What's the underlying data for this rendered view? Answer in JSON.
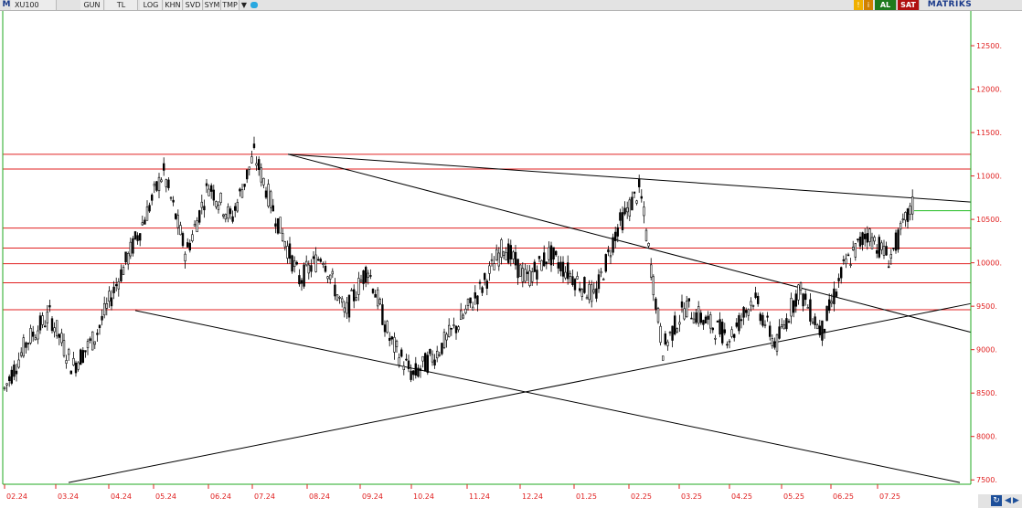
{
  "toolbar": {
    "logo": "M",
    "symbol": "XU100",
    "buttons": [
      "GUN",
      "TL",
      "LOG",
      "KHN",
      "SVD",
      "SYM",
      "TMP"
    ],
    "buy_label": "AL",
    "sell_label": "SAT",
    "brand": "MATRIKS"
  },
  "colors": {
    "background": "#ffffff",
    "candle": "#000000",
    "trendline": "#000000",
    "resistance_line": "#e02020",
    "axis_text": "#e02020",
    "target_line": "#22bb22",
    "plot_border": "#22aa22"
  },
  "chart_data": {
    "type": "candlestick",
    "title": "",
    "xlabel": "",
    "ylabel": "",
    "ylim": [
      7450,
      12900
    ],
    "yticks": [
      7500,
      8000,
      8500,
      9000,
      9500,
      10000,
      10500,
      11000,
      11500,
      12000,
      12500
    ],
    "xticks": [
      "02.24",
      "03.24",
      "04.24",
      "05.24",
      "06.24",
      "07.24",
      "08.24",
      "09.24",
      "10.24",
      "11.24",
      "12.24",
      "01.25",
      "02.25",
      "03.25",
      "04.25",
      "05.25",
      "06.25",
      "07.25"
    ],
    "horizontal_levels": [
      11250,
      11080,
      10400,
      10170,
      9990,
      9770,
      9460
    ],
    "trendlines": [
      {
        "from": [
          "07.24",
          11250
        ],
        "to": [
          "08.25",
          10700
        ]
      },
      {
        "from": [
          "07.24",
          11250
        ],
        "to": [
          "08.25",
          9200
        ]
      },
      {
        "from": [
          "04.24",
          9450
        ],
        "to": [
          "08.25",
          7470
        ]
      },
      {
        "from": [
          "03.24",
          7470
        ],
        "to": [
          "08.25",
          9530
        ]
      }
    ],
    "target_level": 10600,
    "price_path": [
      [
        "02.24",
        8550
      ],
      [
        "02.24",
        9100
      ],
      [
        "03.24",
        9400
      ],
      [
        "03.24",
        8800
      ],
      [
        "04.24",
        9150
      ],
      [
        "04.24",
        9800
      ],
      [
        "05.24",
        10400
      ],
      [
        "05.24",
        11050
      ],
      [
        "06.24",
        10100
      ],
      [
        "06.24",
        10900
      ],
      [
        "07.24",
        10500
      ],
      [
        "07.24",
        11250
      ],
      [
        "08.24",
        10500
      ],
      [
        "08.24",
        9800
      ],
      [
        "09.24",
        10100
      ],
      [
        "09.24",
        9400
      ],
      [
        "10.24",
        9950
      ],
      [
        "10.24",
        9100
      ],
      [
        "11.24",
        8700
      ],
      [
        "11.24",
        8950
      ],
      [
        "11.24",
        9300
      ],
      [
        "12.24",
        9700
      ],
      [
        "12.24",
        10200
      ],
      [
        "01.25",
        9800
      ],
      [
        "01.25",
        10100
      ],
      [
        "02.25",
        9850
      ],
      [
        "02.25",
        9600
      ],
      [
        "03.25",
        10400
      ],
      [
        "03.25",
        10850
      ],
      [
        "03.25",
        9000
      ],
      [
        "04.25",
        9500
      ],
      [
        "04.25",
        9300
      ],
      [
        "05.25",
        9150
      ],
      [
        "05.25",
        9600
      ],
      [
        "06.25",
        9050
      ],
      [
        "06.25",
        9700
      ],
      [
        "06.25",
        9200
      ],
      [
        "07.25",
        9950
      ],
      [
        "07.25",
        10350
      ],
      [
        "07.25",
        10050
      ],
      [
        "08.25",
        10650
      ]
    ]
  }
}
